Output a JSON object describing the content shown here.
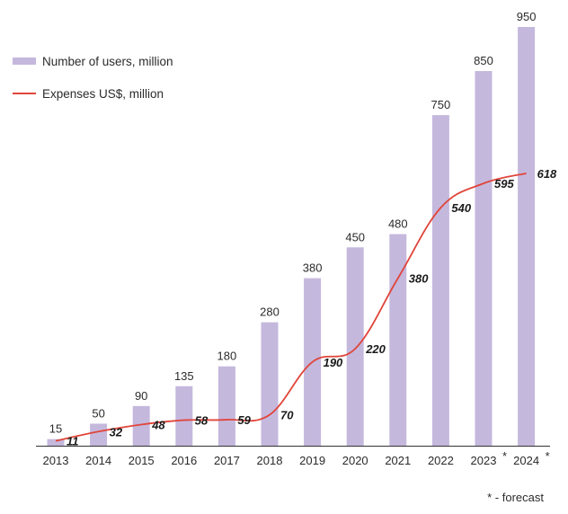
{
  "chart_data": {
    "type": "bar",
    "categories": [
      "2013",
      "2014",
      "2015",
      "2016",
      "2017",
      "2018",
      "2019",
      "2020",
      "2021",
      "2022",
      "2023*",
      "2024*"
    ],
    "series": [
      {
        "name": "Number of users, million",
        "type": "bar",
        "values": [
          15,
          50,
          90,
          135,
          180,
          280,
          380,
          450,
          480,
          750,
          850,
          950
        ]
      },
      {
        "name": "Expenses US$, million",
        "type": "line",
        "values": [
          11,
          32,
          48,
          58,
          59,
          70,
          190,
          220,
          380,
          540,
          595,
          618
        ]
      }
    ],
    "ylim": [
      0,
      950
    ],
    "grid": false,
    "legend_position": "top-left",
    "footnote": "* - forecast",
    "colors": {
      "bar": "#c5b8dd",
      "line": "#e0453a",
      "axis": "#333333",
      "text": "#2b2b2b"
    }
  }
}
